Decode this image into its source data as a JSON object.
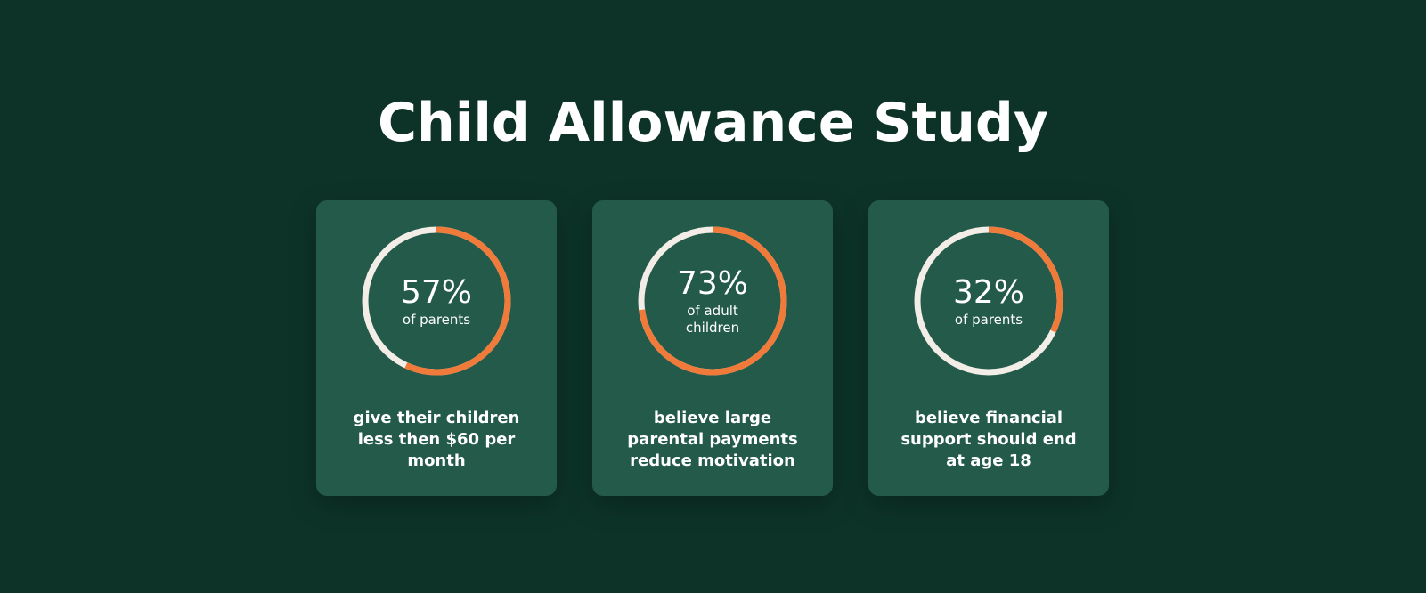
{
  "title": "Child Allowance Study",
  "chart_data": [
    {
      "type": "donut",
      "values": [
        57
      ],
      "value_labels": [
        "57%"
      ],
      "subtitle": "of parents",
      "caption": "give their children less then $60 per month",
      "color": "#f07a3a",
      "track_color": "#f2ede6"
    },
    {
      "type": "donut",
      "values": [
        73
      ],
      "value_labels": [
        "73%"
      ],
      "subtitle": "of adult children",
      "caption": "believe large parental payments reduce motivation",
      "color": "#f07a3a",
      "track_color": "#f2ede6"
    },
    {
      "type": "donut",
      "values": [
        32
      ],
      "value_labels": [
        "32%"
      ],
      "subtitle": "of parents",
      "caption": "believe financial support should end at age 18",
      "color": "#f07a3a",
      "track_color": "#f2ede6"
    }
  ]
}
